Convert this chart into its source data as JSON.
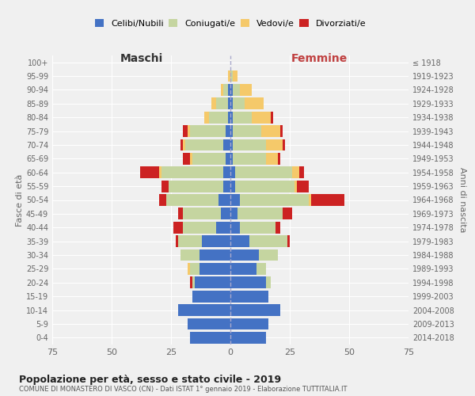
{
  "age_groups": [
    "0-4",
    "5-9",
    "10-14",
    "15-19",
    "20-24",
    "25-29",
    "30-34",
    "35-39",
    "40-44",
    "45-49",
    "50-54",
    "55-59",
    "60-64",
    "65-69",
    "70-74",
    "75-79",
    "80-84",
    "85-89",
    "90-94",
    "95-99",
    "100+"
  ],
  "birth_years": [
    "2014-2018",
    "2009-2013",
    "2004-2008",
    "1999-2003",
    "1994-1998",
    "1989-1993",
    "1984-1988",
    "1979-1983",
    "1974-1978",
    "1969-1973",
    "1964-1968",
    "1959-1963",
    "1954-1958",
    "1949-1953",
    "1944-1948",
    "1939-1943",
    "1934-1938",
    "1929-1933",
    "1924-1928",
    "1919-1923",
    "≤ 1918"
  ],
  "colors": {
    "celibi": "#4472c4",
    "coniugati": "#c5d5a0",
    "vedovi": "#f5c96a",
    "divorziati": "#cc2222"
  },
  "maschi": {
    "celibi": [
      17,
      18,
      22,
      16,
      15,
      13,
      13,
      12,
      6,
      4,
      5,
      3,
      3,
      2,
      3,
      2,
      1,
      1,
      1,
      0,
      0
    ],
    "coniugati": [
      0,
      0,
      0,
      0,
      1,
      4,
      8,
      10,
      14,
      16,
      22,
      23,
      26,
      14,
      16,
      15,
      8,
      5,
      2,
      0,
      0
    ],
    "vedovi": [
      0,
      0,
      0,
      0,
      0,
      1,
      0,
      0,
      0,
      0,
      0,
      0,
      1,
      1,
      1,
      1,
      2,
      2,
      1,
      1,
      0
    ],
    "divorziati": [
      0,
      0,
      0,
      0,
      1,
      0,
      0,
      1,
      4,
      2,
      3,
      3,
      8,
      3,
      1,
      2,
      0,
      0,
      0,
      0,
      0
    ]
  },
  "femmine": {
    "celibi": [
      15,
      16,
      21,
      16,
      15,
      11,
      12,
      8,
      4,
      3,
      4,
      2,
      2,
      1,
      1,
      1,
      1,
      1,
      1,
      0,
      0
    ],
    "coniugati": [
      0,
      0,
      0,
      0,
      2,
      4,
      8,
      16,
      15,
      19,
      29,
      25,
      24,
      14,
      14,
      12,
      8,
      5,
      3,
      1,
      0
    ],
    "vedovi": [
      0,
      0,
      0,
      0,
      0,
      0,
      0,
      0,
      0,
      0,
      1,
      1,
      3,
      5,
      7,
      8,
      8,
      8,
      5,
      2,
      0
    ],
    "divorziati": [
      0,
      0,
      0,
      0,
      0,
      0,
      0,
      1,
      2,
      4,
      14,
      5,
      2,
      1,
      1,
      1,
      1,
      0,
      0,
      0,
      0
    ]
  },
  "xlim": 75,
  "title": "Popolazione per età, sesso e stato civile - 2019",
  "subtitle": "COMUNE DI MONASTERO DI VASCO (CN) - Dati ISTAT 1° gennaio 2019 - Elaborazione TUTTITALIA.IT",
  "ylabel_left": "Fasce di età",
  "ylabel_right": "Anni di nascita",
  "xlabel_left": "Maschi",
  "xlabel_right": "Femmine",
  "bg_color": "#f0f0f0",
  "grid_color": "#ffffff"
}
